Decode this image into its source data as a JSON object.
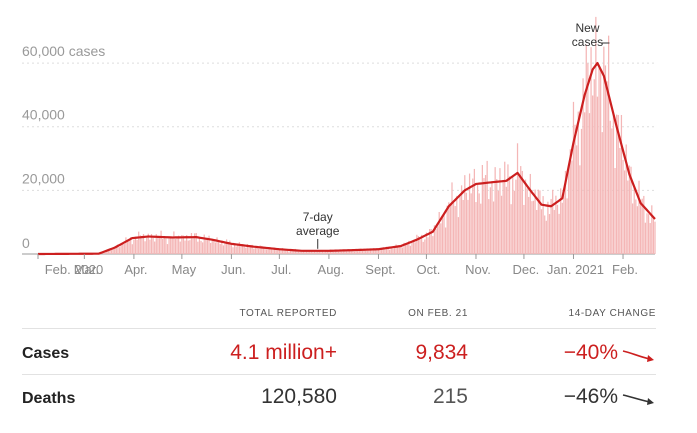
{
  "chart_data": {
    "type": "bar",
    "title": "",
    "ylabel": "",
    "y_ticks": [
      {
        "value": 0,
        "label": "0"
      },
      {
        "value": 20000,
        "label": "20,000"
      },
      {
        "value": 40000,
        "label": "40,000"
      },
      {
        "value": 60000,
        "label": "60,000 cases"
      }
    ],
    "ylim": [
      0,
      66000
    ],
    "x_ticks": [
      "Feb. 2020",
      "Mar.",
      "Apr.",
      "May",
      "Jun.",
      "Jul.",
      "Aug.",
      "Sept.",
      "Oct.",
      "Nov.",
      "Dec.",
      "Jan. 2021",
      "Feb."
    ],
    "date_range": [
      "2020-02-01",
      "2021-02-21"
    ],
    "series": [
      {
        "name": "New cases",
        "kind": "daily bars",
        "color": "#f4b6b6"
      },
      {
        "name": "7-day average",
        "kind": "line",
        "color": "#cc1f1f"
      }
    ],
    "avg_points": [
      {
        "date": "2020-02-01",
        "value": 0
      },
      {
        "date": "2020-03-10",
        "value": 100
      },
      {
        "date": "2020-03-20",
        "value": 2000
      },
      {
        "date": "2020-03-31",
        "value": 5000
      },
      {
        "date": "2020-04-10",
        "value": 5500
      },
      {
        "date": "2020-04-25",
        "value": 5200
      },
      {
        "date": "2020-05-10",
        "value": 5300
      },
      {
        "date": "2020-05-20",
        "value": 4500
      },
      {
        "date": "2020-06-01",
        "value": 3200
      },
      {
        "date": "2020-06-15",
        "value": 2300
      },
      {
        "date": "2020-07-01",
        "value": 1500
      },
      {
        "date": "2020-07-15",
        "value": 1000
      },
      {
        "date": "2020-08-01",
        "value": 1000
      },
      {
        "date": "2020-08-15",
        "value": 1200
      },
      {
        "date": "2020-09-01",
        "value": 1500
      },
      {
        "date": "2020-09-15",
        "value": 2500
      },
      {
        "date": "2020-09-25",
        "value": 4500
      },
      {
        "date": "2020-10-05",
        "value": 7000
      },
      {
        "date": "2020-10-15",
        "value": 15000
      },
      {
        "date": "2020-10-25",
        "value": 20000
      },
      {
        "date": "2020-11-01",
        "value": 22000
      },
      {
        "date": "2020-11-10",
        "value": 22500
      },
      {
        "date": "2020-11-20",
        "value": 23000
      },
      {
        "date": "2020-11-27",
        "value": 25500
      },
      {
        "date": "2020-12-05",
        "value": 20000
      },
      {
        "date": "2020-12-12",
        "value": 15500
      },
      {
        "date": "2020-12-18",
        "value": 15000
      },
      {
        "date": "2020-12-25",
        "value": 17500
      },
      {
        "date": "2021-01-01",
        "value": 35000
      },
      {
        "date": "2021-01-08",
        "value": 50000
      },
      {
        "date": "2021-01-13",
        "value": 58000
      },
      {
        "date": "2021-01-16",
        "value": 60000
      },
      {
        "date": "2021-01-20",
        "value": 56000
      },
      {
        "date": "2021-01-28",
        "value": 40000
      },
      {
        "date": "2021-02-05",
        "value": 25000
      },
      {
        "date": "2021-02-12",
        "value": 16000
      },
      {
        "date": "2021-02-21",
        "value": 11000
      }
    ],
    "annotations": [
      {
        "text_lines": [
          "7-day",
          "average"
        ],
        "date": "2020-07-25",
        "value": 1000
      },
      {
        "text_lines": [
          "New",
          "cases"
        ],
        "date": "2021-01-16",
        "value": 66000
      }
    ]
  },
  "stats_table": {
    "headers": {
      "total": "TOTAL REPORTED",
      "day": "ON FEB. 21",
      "change": "14-DAY CHANGE"
    },
    "rows": [
      {
        "label": "Cases",
        "total": "4.1 million+",
        "day": "9,834",
        "change": "−40%",
        "color": "#cc1f1f",
        "arrow_icon": "down-trend-arrow"
      },
      {
        "label": "Deaths",
        "total": "120,580",
        "day": "215",
        "change": "−46%",
        "color": "#333333",
        "arrow_icon": "down-trend-arrow"
      }
    ]
  }
}
